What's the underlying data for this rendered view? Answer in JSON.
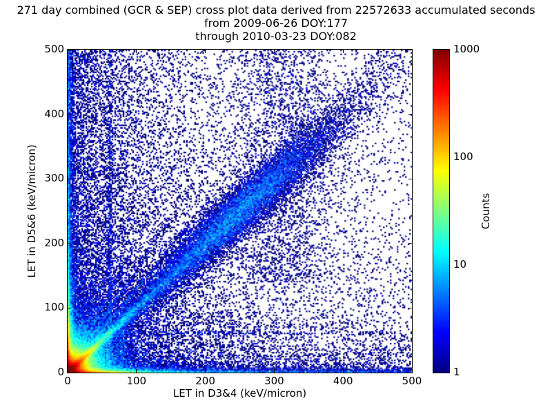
{
  "chart_data": {
    "type": "heatmap",
    "title": "271 day combined (GCR & SEP) cross plot data derived from 22572633 accumulated seconds",
    "subtitle1": "from 2009-06-26 DOY:177",
    "subtitle2": "through 2010-03-23 DOY:082",
    "xlabel": "LET in D3&4 (keV/micron)",
    "ylabel": "LET in D5&6 (keV/micron)",
    "xlim": [
      0,
      500
    ],
    "ylim": [
      0,
      500
    ],
    "xticks": [
      0,
      100,
      200,
      300,
      400,
      500
    ],
    "yticks": [
      0,
      100,
      200,
      300,
      400,
      500
    ],
    "grid": false,
    "background": "#ffffff",
    "frame_color": "#000000",
    "base_point_color": "#00007f",
    "colorbar": {
      "label": "Counts",
      "scale": "log",
      "min": 1,
      "max": 1000,
      "ticks": [
        1,
        10,
        100,
        1000
      ],
      "colormap": "jet"
    },
    "bins": 250,
    "density_features": [
      {
        "kind": "corner_glow",
        "amp": 2500,
        "scale": 7
      },
      {
        "kind": "corner_glow",
        "amp": 150,
        "scale": 18
      },
      {
        "kind": "axis_band",
        "axis": "x",
        "amp": 900,
        "thick": 1.8,
        "decay": 28
      },
      {
        "kind": "axis_band",
        "axis": "x",
        "amp": 20,
        "thick": 2.0,
        "decay": 110
      },
      {
        "kind": "axis_band",
        "axis": "x",
        "amp": 6,
        "thick": 2.5,
        "decay": 900
      },
      {
        "kind": "axis_band",
        "axis": "x",
        "amp": 5,
        "thick": 5,
        "decay": 400
      },
      {
        "kind": "axis_band",
        "axis": "x",
        "amp": 25,
        "thick": 7,
        "decay": 60
      },
      {
        "kind": "axis_band",
        "axis": "y",
        "amp": 900,
        "thick": 1.8,
        "decay": 28
      },
      {
        "kind": "axis_band",
        "axis": "y",
        "amp": 20,
        "thick": 2.0,
        "decay": 110
      },
      {
        "kind": "axis_band",
        "axis": "y",
        "amp": 6,
        "thick": 2.5,
        "decay": 900
      },
      {
        "kind": "axis_band",
        "axis": "y",
        "amp": 5,
        "thick": 5,
        "decay": 400
      },
      {
        "kind": "axis_band",
        "axis": "y",
        "amp": 25,
        "thick": 7,
        "decay": 60
      },
      {
        "kind": "diag_hot",
        "amp": 700,
        "decay": 11,
        "width": 2.8
      },
      {
        "kind": "diag_hot",
        "amp": 30,
        "decay": 55,
        "width": 3.5
      },
      {
        "kind": "diag_band",
        "amp": 3.5,
        "decay": 160,
        "width0": 5,
        "grow": 0.035
      },
      {
        "kind": "diag_blob",
        "center": 245,
        "sigma": 70,
        "amp": 4.5,
        "width": 16
      },
      {
        "kind": "ray",
        "slope": 1.3,
        "amp": 7,
        "width": 1.8,
        "length": 105
      },
      {
        "kind": "ray",
        "slope": 1.6,
        "amp": 6.5,
        "width": 1.8,
        "length": 95
      },
      {
        "kind": "ray",
        "slope": 2.05,
        "amp": 5.5,
        "width": 1.8,
        "length": 85
      },
      {
        "kind": "ray",
        "slope": 2.7,
        "amp": 5,
        "width": 1.8,
        "length": 78
      },
      {
        "kind": "ray",
        "slope": 3.8,
        "amp": 4.5,
        "width": 1.8,
        "length": 70
      },
      {
        "kind": "ray",
        "slope": 0.62,
        "amp": 3.5,
        "width": 1.8,
        "length": 60
      },
      {
        "kind": "ray",
        "slope": 0.42,
        "amp": 3,
        "width": 1.8,
        "length": 52
      },
      {
        "kind": "vline",
        "x": 61,
        "amp": 2.6,
        "sigma": 1.8,
        "ystart": 20,
        "ydecay": 300
      },
      {
        "kind": "vline",
        "x": 79,
        "amp": 1.2,
        "sigma": 1.6,
        "ystart": 20,
        "ydecay": 140
      },
      {
        "kind": "hline",
        "y": 61,
        "amp": 1.8,
        "sigma": 1.8,
        "xstart": 20,
        "xdecay": 180
      },
      {
        "kind": "column_cluster",
        "x": 318,
        "sigma": 36,
        "amp": 0.25,
        "ymin": 140
      },
      {
        "kind": "bg_exp",
        "amp": 2.5,
        "scale": 70
      },
      {
        "kind": "bg_exp",
        "amp": 0.5,
        "scale": 200
      },
      {
        "kind": "bg_xexp",
        "amp": 0.5,
        "scale": 45
      },
      {
        "kind": "bg_xexp",
        "amp": 0.3,
        "scale": 140
      },
      {
        "kind": "bg_yexp",
        "amp": 0.4,
        "scale": 42
      },
      {
        "kind": "bg_uniform",
        "amp": 0.035
      }
    ]
  }
}
